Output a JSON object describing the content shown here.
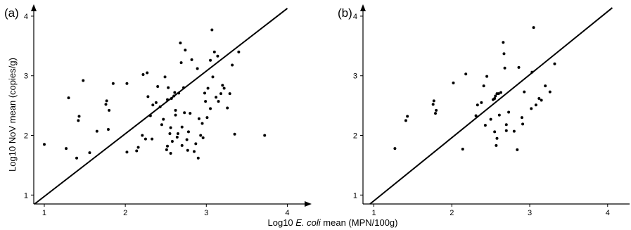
{
  "figure": {
    "y_axis_title": "Log10 NoV mean (copies/g)",
    "x_axis_title_prefix": "Log10 ",
    "x_axis_title_italic": "E. coli",
    "x_axis_title_suffix": " mean (MPN/100g)"
  },
  "chart_data": [
    {
      "type": "scatter",
      "panel_label": "(a)",
      "xlabel": "Log10 E. coli mean (MPN/100g)",
      "ylabel": "Log10 NoV mean (copies/g)",
      "xlim": [
        0.87,
        4.3
      ],
      "ylim": [
        0.85,
        4.2
      ],
      "xticks": [
        "1",
        "2",
        "3",
        "4"
      ],
      "yticks": [
        "1",
        "2",
        "3",
        "4"
      ],
      "grid": false,
      "reference_line": {
        "x": [
          0.88,
          4.0
        ],
        "y": [
          0.85,
          4.13
        ]
      },
      "points": [
        [
          1.0,
          1.85
        ],
        [
          1.27,
          1.78
        ],
        [
          1.3,
          2.63
        ],
        [
          1.4,
          1.62
        ],
        [
          1.42,
          2.25
        ],
        [
          1.43,
          2.32
        ],
        [
          1.48,
          2.92
        ],
        [
          1.56,
          1.71
        ],
        [
          1.65,
          2.07
        ],
        [
          1.76,
          2.52
        ],
        [
          1.77,
          2.58
        ],
        [
          1.79,
          2.1
        ],
        [
          1.8,
          2.42
        ],
        [
          1.85,
          2.87
        ],
        [
          2.02,
          1.72
        ],
        [
          2.02,
          2.87
        ],
        [
          2.14,
          1.74
        ],
        [
          2.16,
          1.8
        ],
        [
          2.21,
          2.0
        ],
        [
          2.22,
          3.02
        ],
        [
          2.25,
          1.94
        ],
        [
          2.27,
          3.05
        ],
        [
          2.28,
          2.65
        ],
        [
          2.31,
          2.33
        ],
        [
          2.33,
          1.94
        ],
        [
          2.34,
          2.51
        ],
        [
          2.38,
          2.55
        ],
        [
          2.4,
          2.82
        ],
        [
          2.43,
          2.48
        ],
        [
          2.45,
          2.18
        ],
        [
          2.47,
          2.27
        ],
        [
          2.49,
          2.98
        ],
        [
          2.51,
          1.76
        ],
        [
          2.52,
          1.82
        ],
        [
          2.52,
          2.6
        ],
        [
          2.53,
          2.8
        ],
        [
          2.55,
          2.03
        ],
        [
          2.56,
          1.7
        ],
        [
          2.56,
          2.13
        ],
        [
          2.57,
          2.62
        ],
        [
          2.58,
          1.9
        ],
        [
          2.6,
          2.66
        ],
        [
          2.61,
          2.72
        ],
        [
          2.62,
          2.42
        ],
        [
          2.62,
          2.34
        ],
        [
          2.64,
          1.97
        ],
        [
          2.65,
          2.03
        ],
        [
          2.66,
          2.71
        ],
        [
          2.68,
          3.55
        ],
        [
          2.69,
          3.22
        ],
        [
          2.7,
          2.14
        ],
        [
          2.7,
          1.83
        ],
        [
          2.72,
          2.8
        ],
        [
          2.73,
          2.38
        ],
        [
          2.74,
          3.43
        ],
        [
          2.76,
          1.93
        ],
        [
          2.77,
          1.75
        ],
        [
          2.78,
          2.06
        ],
        [
          2.8,
          2.37
        ],
        [
          2.82,
          3.27
        ],
        [
          2.85,
          1.73
        ],
        [
          2.87,
          1.86
        ],
        [
          2.89,
          3.12
        ],
        [
          2.9,
          1.62
        ],
        [
          2.91,
          2.28
        ],
        [
          2.93,
          2.0
        ],
        [
          2.95,
          2.2
        ],
        [
          2.96,
          1.96
        ],
        [
          2.98,
          2.71
        ],
        [
          2.99,
          2.57
        ],
        [
          3.01,
          2.3
        ],
        [
          3.02,
          2.79
        ],
        [
          3.05,
          2.45
        ],
        [
          3.05,
          3.26
        ],
        [
          3.07,
          3.77
        ],
        [
          3.08,
          2.98
        ],
        [
          3.1,
          3.4
        ],
        [
          3.12,
          2.64
        ],
        [
          3.14,
          3.33
        ],
        [
          3.15,
          2.57
        ],
        [
          3.18,
          2.7
        ],
        [
          3.2,
          2.84
        ],
        [
          3.22,
          2.79
        ],
        [
          3.26,
          2.46
        ],
        [
          3.29,
          2.7
        ],
        [
          3.32,
          3.18
        ],
        [
          3.35,
          2.02
        ],
        [
          3.4,
          3.4
        ],
        [
          3.72,
          2.0
        ]
      ]
    },
    {
      "type": "scatter",
      "panel_label": "(b)",
      "xlabel": "Log10 E. coli mean (MPN/100g)",
      "ylabel": "Log10 NoV mean (copies/g)",
      "xlim": [
        0.86,
        4.3
      ],
      "ylim": [
        0.85,
        4.2
      ],
      "xticks": [
        "1",
        "2",
        "3",
        "4"
      ],
      "yticks": [
        "1",
        "2",
        "3",
        "4"
      ],
      "grid": false,
      "reference_line": {
        "x": [
          0.95,
          4.06
        ],
        "y": [
          0.85,
          4.14
        ]
      },
      "points": [
        [
          1.27,
          1.78
        ],
        [
          1.41,
          2.25
        ],
        [
          1.43,
          2.32
        ],
        [
          1.76,
          2.52
        ],
        [
          1.77,
          2.58
        ],
        [
          1.8,
          2.42
        ],
        [
          1.79,
          2.37
        ],
        [
          2.02,
          2.88
        ],
        [
          2.14,
          1.77
        ],
        [
          2.18,
          3.03
        ],
        [
          2.31,
          2.33
        ],
        [
          2.33,
          2.51
        ],
        [
          2.38,
          2.55
        ],
        [
          2.41,
          2.83
        ],
        [
          2.43,
          2.17
        ],
        [
          2.45,
          2.99
        ],
        [
          2.5,
          2.27
        ],
        [
          2.53,
          2.6
        ],
        [
          2.55,
          2.62
        ],
        [
          2.55,
          2.06
        ],
        [
          2.56,
          2.66
        ],
        [
          2.57,
          1.83
        ],
        [
          2.58,
          2.7
        ],
        [
          2.58,
          1.95
        ],
        [
          2.6,
          2.7
        ],
        [
          2.61,
          2.34
        ],
        [
          2.63,
          2.72
        ],
        [
          2.66,
          3.56
        ],
        [
          2.67,
          3.37
        ],
        [
          2.68,
          3.13
        ],
        [
          2.7,
          2.18
        ],
        [
          2.7,
          2.08
        ],
        [
          2.73,
          2.39
        ],
        [
          2.8,
          2.07
        ],
        [
          2.84,
          1.76
        ],
        [
          2.86,
          3.14
        ],
        [
          2.9,
          2.3
        ],
        [
          2.91,
          2.19
        ],
        [
          2.93,
          2.73
        ],
        [
          3.02,
          2.45
        ],
        [
          3.03,
          3.06
        ],
        [
          3.05,
          3.81
        ],
        [
          3.08,
          2.51
        ],
        [
          3.12,
          2.62
        ],
        [
          3.15,
          2.59
        ],
        [
          3.2,
          2.83
        ],
        [
          3.26,
          2.73
        ],
        [
          3.32,
          3.2
        ]
      ]
    }
  ]
}
